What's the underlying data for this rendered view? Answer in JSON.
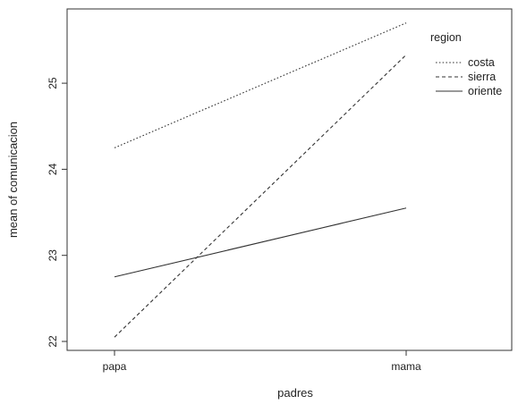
{
  "chart_data": {
    "type": "line",
    "categories": [
      "papa",
      "mama"
    ],
    "xlabel": "padres",
    "ylabel": "mean of comunicacion",
    "yticks": [
      22,
      23,
      24,
      25
    ],
    "ylim": [
      21.9,
      25.8
    ],
    "grid": false,
    "legend": {
      "title": "region",
      "placement": "top-right, inside plot",
      "entries": [
        "costa",
        "sierra",
        "oriente"
      ]
    },
    "series": [
      {
        "name": "costa",
        "values": [
          24.25,
          25.7
        ],
        "style": "dotted",
        "color": "#333333"
      },
      {
        "name": "sierra",
        "values": [
          22.05,
          25.33
        ],
        "style": "dashed",
        "color": "#333333"
      },
      {
        "name": "oriente",
        "values": [
          22.75,
          23.55
        ],
        "style": "solid",
        "color": "#333333"
      }
    ]
  }
}
